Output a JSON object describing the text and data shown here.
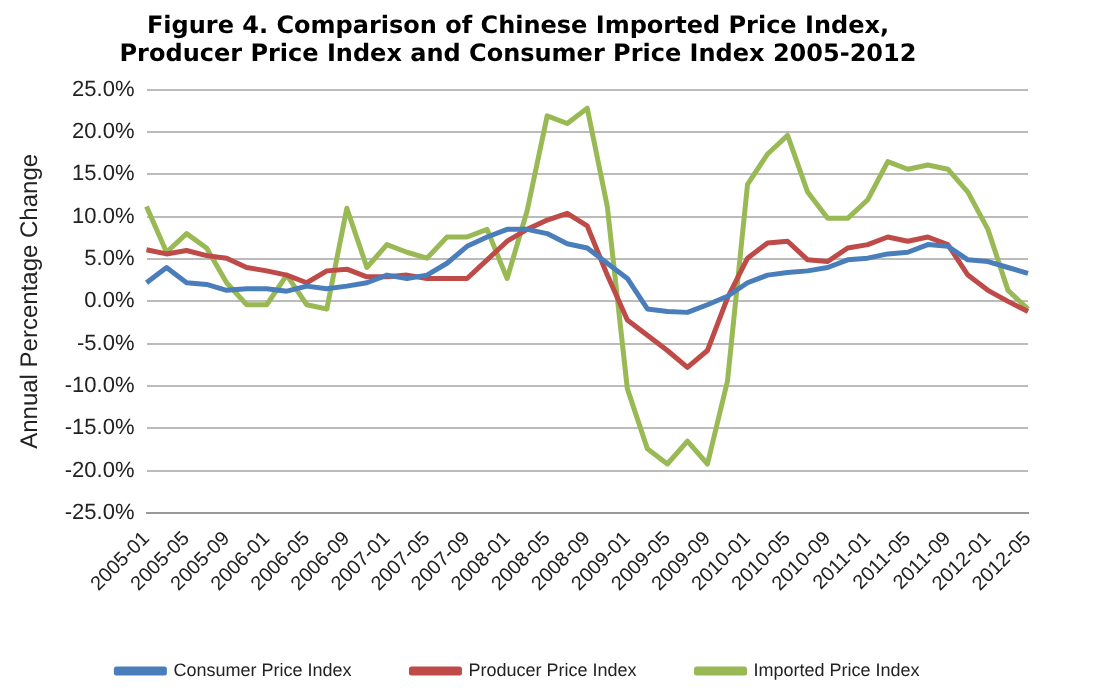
{
  "chart_data": {
    "type": "line",
    "title": "Figure 4. Comparison of Chinese Imported Price Index,\nProducer Price Index and Consumer Price Index 2005-2012",
    "ylabel": "Annual Percentage Change",
    "categories": [
      "2005-01",
      null,
      "2005-05",
      null,
      "2005-09",
      null,
      "2006-01",
      null,
      "2006-05",
      null,
      "2006-09",
      null,
      "2007-01",
      null,
      "2007-05",
      null,
      "2007-09",
      null,
      "2008-01",
      null,
      "2008-05",
      null,
      "2008-09",
      null,
      "2009-01",
      null,
      "2009-05",
      null,
      "2009-09",
      null,
      "2010-01",
      null,
      "2010-05",
      null,
      "2010-09",
      null,
      "2011-01",
      null,
      "2011-05",
      null,
      "2011-09",
      null,
      "2012-01",
      null,
      "2012-05"
    ],
    "series": [
      {
        "name": "Consumer Price Index",
        "color": "#4a7ebb",
        "values": [
          2.2,
          4.0,
          2.2,
          2.0,
          1.3,
          1.5,
          1.5,
          1.2,
          1.8,
          1.5,
          1.8,
          2.2,
          3.1,
          2.7,
          3.1,
          4.5,
          6.5,
          7.6,
          8.5,
          8.5,
          8.0,
          6.8,
          6.3,
          4.5,
          2.7,
          -0.9,
          -1.2,
          -1.3,
          -0.4,
          0.6,
          2.2,
          3.1,
          3.4,
          3.6,
          4.0,
          4.9,
          5.1,
          5.6,
          5.8,
          6.7,
          6.5,
          4.9,
          4.7,
          4.0,
          3.3
        ]
      },
      {
        "name": "Producer Price Index",
        "color": "#be4b48",
        "values": [
          6.1,
          5.6,
          6.0,
          5.4,
          5.1,
          4.0,
          3.6,
          3.1,
          2.2,
          3.6,
          3.8,
          2.9,
          2.9,
          3.1,
          2.7,
          2.7,
          2.7,
          4.9,
          7.1,
          8.5,
          9.6,
          10.4,
          8.9,
          3.1,
          -2.2,
          -4.0,
          -5.8,
          -7.8,
          -5.8,
          0.4,
          5.1,
          6.9,
          7.1,
          4.9,
          4.7,
          6.3,
          6.7,
          7.6,
          7.1,
          7.6,
          6.7,
          3.1,
          1.3,
          0.0,
          -1.2
        ]
      },
      {
        "name": "Imported Price Index",
        "color": "#98b954",
        "values": [
          11.2,
          5.8,
          8.0,
          6.3,
          2.2,
          -0.4,
          -0.4,
          3.1,
          -0.4,
          -0.9,
          11.0,
          4.0,
          6.7,
          5.8,
          5.1,
          7.6,
          7.6,
          8.5,
          2.7,
          10.7,
          21.9,
          21.0,
          22.8,
          11.2,
          -10.3,
          -17.4,
          -19.2,
          -16.5,
          -19.2,
          -9.4,
          13.8,
          17.4,
          19.6,
          12.9,
          9.8,
          9.8,
          12.0,
          16.5,
          15.6,
          16.1,
          15.6,
          12.9,
          8.5,
          1.3,
          -0.9
        ]
      }
    ],
    "ylim": [
      -25,
      25
    ],
    "yticks": [
      {
        "value": -25,
        "label": "-25.0%"
      },
      {
        "value": -20,
        "label": "-20.0%"
      },
      {
        "value": -15,
        "label": "-15.0%"
      },
      {
        "value": -10,
        "label": "-10.0%"
      },
      {
        "value": -5,
        "label": "-5.0%"
      },
      {
        "value": 0,
        "label": "0.0%"
      },
      {
        "value": 5,
        "label": "5.0%"
      },
      {
        "value": 10,
        "label": "10.0%"
      },
      {
        "value": 15,
        "label": "15.0%"
      },
      {
        "value": 20,
        "label": "20.0%"
      },
      {
        "value": 25,
        "label": "25.0%"
      }
    ],
    "grid": "y",
    "legend": "bottom",
    "marker": "none",
    "line_style": "solid"
  }
}
